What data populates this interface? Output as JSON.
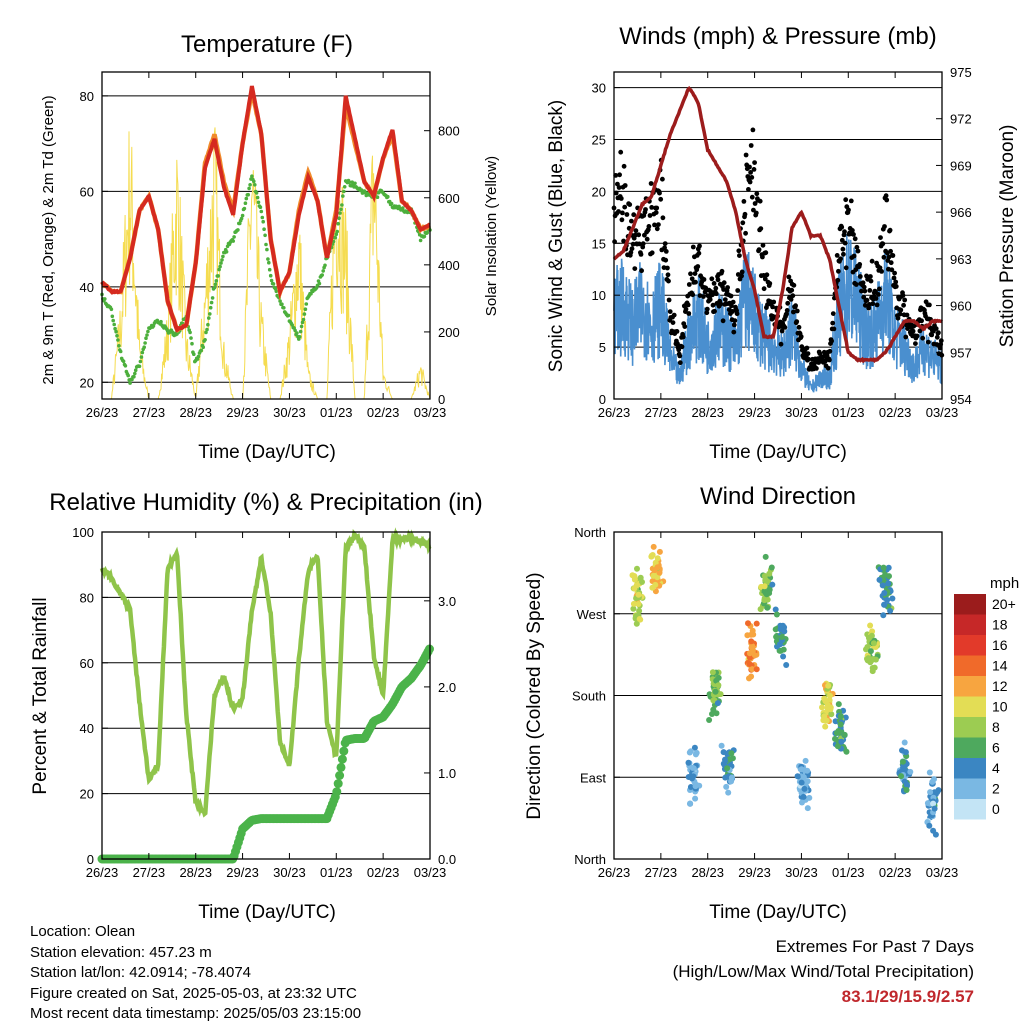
{
  "days": [
    "26/23",
    "27/23",
    "28/23",
    "29/23",
    "30/23",
    "01/23",
    "02/23",
    "03/23"
  ],
  "xlabel": "Time (Day/UTC)",
  "panels": {
    "temperature": {
      "title": "Temperature (F)",
      "ylabel_left": "2m & 9m T (Red, Orange) & 2m Td (Green)",
      "ylabel_right": "Solar Insolation (Yellow)",
      "yticks_left": [
        "20",
        "40",
        "60",
        "80"
      ],
      "yticks_right": [
        "0",
        "200",
        "400",
        "600",
        "800"
      ]
    },
    "winds": {
      "title": "Winds (mph) & Pressure (mb)",
      "ylabel_left": "Sonic Wind & Gust (Blue, Black)",
      "ylabel_right": "Station Pressure (Maroon)",
      "yticks_left": [
        "0",
        "5",
        "10",
        "15",
        "20",
        "25",
        "30"
      ],
      "yticks_right": [
        "954",
        "957",
        "960",
        "963",
        "966",
        "969",
        "972",
        "975"
      ]
    },
    "humidity": {
      "title": "Relative Humidity (%) & Precipitation (in)",
      "ylabel_left": "Percent & Total Rainfall",
      "yticks_left": [
        "0",
        "20",
        "40",
        "60",
        "80",
        "100"
      ],
      "yticks_right": [
        "0.0",
        "1.0",
        "2.0",
        "3.0"
      ]
    },
    "direction": {
      "title": "Wind Direction",
      "ylabel_left": "Direction (Colored By Speed)",
      "yticks_left": [
        "North",
        "East",
        "South",
        "West",
        "North"
      ],
      "legend_title": "mph",
      "legend_labels": [
        "20+",
        "18",
        "16",
        "14",
        "12",
        "10",
        "8",
        "6",
        "4",
        "2",
        "0"
      ],
      "legend_colors": [
        "#9b1c1c",
        "#c62828",
        "#e23a2a",
        "#f06a2a",
        "#f7a540",
        "#e3dd55",
        "#9ccc52",
        "#4ea95e",
        "#3b86c2",
        "#7ab8e3",
        "#c3e4f5"
      ]
    }
  },
  "info": {
    "location": "Location: Olean",
    "elevation": "Station elevation: 457.23 m",
    "latlon": "Station lat/lon: 42.0914; -78.4074",
    "created": "Figure created on Sat, 2025-05-03, at 23:32 UTC",
    "recent": "Most recent data timestamp: 2025/05/03 23:15:00"
  },
  "extremes": {
    "title": "Extremes For Past 7 Days",
    "subtitle": "(High/Low/Max Wind/Total Precipitation)",
    "values": "83.1/29/15.9/2.57"
  },
  "chart_data": [
    {
      "type": "line",
      "title": "Temperature (F)",
      "xlabel": "Time (Day/UTC)",
      "ylabel": "2m & 9m T (Red, Orange) & 2m Td (Green)",
      "y2label": "Solar Insolation (Yellow)",
      "ylim": [
        16.5,
        85
      ],
      "y2lim": [
        0,
        975
      ],
      "x": [
        0,
        0.2,
        0.4,
        0.6,
        0.8,
        1.0,
        1.2,
        1.4,
        1.6,
        1.8,
        2.0,
        2.2,
        2.4,
        2.6,
        2.8,
        3.0,
        3.2,
        3.4,
        3.6,
        3.8,
        4.0,
        4.2,
        4.4,
        4.6,
        4.8,
        5.0,
        5.2,
        5.4,
        5.6,
        5.8,
        6.0,
        6.2,
        6.4,
        6.6,
        6.8,
        7.0
      ],
      "series": [
        {
          "name": "2m T",
          "color": "#d52a20",
          "values": [
            41,
            39,
            39,
            46,
            56,
            59,
            52,
            37,
            31,
            32,
            45,
            65,
            71,
            61,
            55,
            70,
            82,
            72,
            50,
            39,
            43,
            55,
            63,
            58,
            46,
            55,
            80,
            71,
            62,
            59,
            67,
            73,
            58,
            56,
            52,
            53
          ]
        },
        {
          "name": "9m T",
          "color": "#f08a2a",
          "values": [
            41,
            39,
            39,
            46,
            56,
            59,
            52,
            37,
            31,
            32,
            45,
            66,
            72,
            62,
            56,
            70,
            81,
            72,
            50,
            39,
            43,
            56,
            64,
            58,
            46,
            56,
            78,
            70,
            62,
            59,
            67,
            72,
            58,
            56,
            52,
            53
          ]
        },
        {
          "name": "2m Td",
          "color": "#4caf3c",
          "values": [
            38,
            35,
            26,
            20,
            24,
            31,
            33,
            31,
            30,
            34,
            24,
            29,
            40,
            47,
            50,
            55,
            63,
            56,
            42,
            37,
            33,
            29,
            38,
            40,
            46,
            51,
            62,
            61,
            60,
            59,
            60,
            57,
            56,
            56,
            50,
            52
          ]
        },
        {
          "name": "Solar Insolation",
          "axis": "right",
          "color": "#f5dc50",
          "values": [
            0,
            0,
            320,
            920,
            200,
            0,
            0,
            280,
            850,
            220,
            0,
            400,
            900,
            180,
            0,
            0,
            920,
            300,
            0,
            0,
            240,
            620,
            100,
            0,
            0,
            880,
            600,
            0,
            0,
            960,
            100,
            0,
            0,
            0,
            120,
            0
          ]
        }
      ]
    },
    {
      "type": "line",
      "title": "Winds (mph) & Pressure (mb)",
      "xlabel": "Time (Day/UTC)",
      "ylabel": "Sonic Wind & Gust (Blue, Black)",
      "y2label": "Station Pressure (Maroon)",
      "ylim": [
        0,
        31.5
      ],
      "y2lim": [
        954,
        975
      ],
      "x": [
        0,
        0.2,
        0.4,
        0.6,
        0.8,
        1.0,
        1.2,
        1.4,
        1.6,
        1.8,
        2.0,
        2.2,
        2.4,
        2.6,
        2.8,
        3.0,
        3.2,
        3.4,
        3.6,
        3.8,
        4.0,
        4.2,
        4.4,
        4.6,
        4.8,
        5.0,
        5.2,
        5.4,
        5.6,
        5.8,
        6.0,
        6.2,
        6.4,
        6.6,
        6.8,
        7.0
      ],
      "series": [
        {
          "name": "Sonic Wind",
          "color": "#4a8fcf",
          "values": [
            8,
            9,
            7,
            9,
            7,
            9,
            4,
            2,
            6,
            8,
            5,
            7,
            6,
            5,
            10,
            8,
            6,
            5,
            4,
            7,
            3,
            1,
            2,
            2,
            8,
            11,
            9,
            6,
            7,
            10,
            6,
            5,
            3,
            5,
            4,
            3
          ]
        },
        {
          "name": "Gust",
          "color": "#000000",
          "values": [
            18,
            20,
            15,
            16,
            18,
            19,
            8,
            4,
            10,
            13,
            9,
            11,
            10,
            8,
            20,
            22,
            12,
            8,
            7,
            11,
            5,
            3,
            4,
            4,
            14,
            17,
            13,
            10,
            11,
            18,
            10,
            8,
            6,
            8,
            7,
            5
          ]
        },
        {
          "name": "Station Pressure",
          "axis": "right",
          "color": "#9c1c1c",
          "values": [
            963,
            963.5,
            965,
            966.5,
            967,
            969,
            971,
            972.5,
            974,
            973,
            970,
            969,
            968,
            966,
            963,
            961,
            958,
            958,
            961,
            965,
            966,
            964.5,
            964.5,
            963,
            960,
            957,
            956.5,
            956.5,
            956.5,
            957,
            958,
            959,
            959,
            958.5,
            959,
            959
          ]
        }
      ]
    },
    {
      "type": "line",
      "title": "Relative Humidity (%) & Precipitation (in)",
      "xlabel": "Time (Day/UTC)",
      "ylabel": "Percent & Total Rainfall",
      "ylim": [
        0,
        100
      ],
      "y2lim": [
        0,
        3.8
      ],
      "x": [
        0,
        0.2,
        0.4,
        0.6,
        0.8,
        1.0,
        1.2,
        1.4,
        1.6,
        1.8,
        2.0,
        2.2,
        2.4,
        2.6,
        2.8,
        3.0,
        3.2,
        3.4,
        3.6,
        3.8,
        4.0,
        4.2,
        4.4,
        4.6,
        4.8,
        5.0,
        5.2,
        5.4,
        5.6,
        5.8,
        6.0,
        6.2,
        6.4,
        6.6,
        6.8,
        7.0
      ],
      "series": [
        {
          "name": "Relative Humidity",
          "color": "#8fc44a",
          "values": [
            89,
            86,
            81,
            76,
            48,
            24,
            29,
            89,
            94,
            44,
            17,
            14,
            50,
            56,
            46,
            49,
            76,
            92,
            75,
            36,
            28,
            61,
            88,
            93,
            42,
            31,
            95,
            99,
            95,
            62,
            50,
            98,
            98,
            98,
            97,
            96
          ]
        },
        {
          "name": "Total Rainfall",
          "axis": "right",
          "color": "#4bb34a",
          "values": [
            0,
            0,
            0,
            0,
            0,
            0,
            0,
            0,
            0,
            0,
            0,
            0,
            0,
            0,
            0,
            0.35,
            0.45,
            0.47,
            0.47,
            0.47,
            0.47,
            0.47,
            0.47,
            0.47,
            0.47,
            0.75,
            1.38,
            1.4,
            1.4,
            1.6,
            1.65,
            1.8,
            2.0,
            2.1,
            2.25,
            2.45
          ]
        }
      ]
    },
    {
      "type": "scatter",
      "title": "Wind Direction",
      "xlabel": "Time (Day/UTC)",
      "ylabel": "Direction (Colored By Speed)",
      "ylim": [
        0,
        360
      ],
      "legend": "right",
      "clusters": [
        {
          "x": 0.5,
          "dir": 290,
          "speed": 9
        },
        {
          "x": 0.9,
          "dir": 315,
          "speed": 11
        },
        {
          "x": 1.7,
          "dir": 90,
          "speed": 3
        },
        {
          "x": 2.15,
          "dir": 185,
          "speed": 7
        },
        {
          "x": 2.45,
          "dir": 100,
          "speed": 4
        },
        {
          "x": 2.95,
          "dir": 232,
          "speed": 13
        },
        {
          "x": 3.25,
          "dir": 300,
          "speed": 7
        },
        {
          "x": 3.55,
          "dir": 240,
          "speed": 5
        },
        {
          "x": 4.05,
          "dir": 85,
          "speed": 3
        },
        {
          "x": 4.55,
          "dir": 175,
          "speed": 10
        },
        {
          "x": 4.85,
          "dir": 140,
          "speed": 5
        },
        {
          "x": 5.5,
          "dir": 235,
          "speed": 8
        },
        {
          "x": 5.8,
          "dir": 300,
          "speed": 5
        },
        {
          "x": 6.2,
          "dir": 95,
          "speed": 4
        },
        {
          "x": 6.8,
          "dir": 60,
          "speed": 3
        }
      ]
    }
  ]
}
